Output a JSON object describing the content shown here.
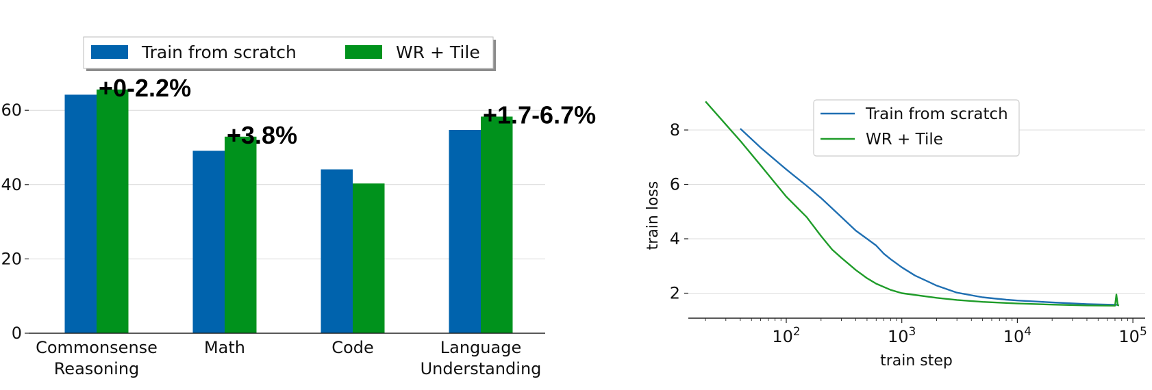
{
  "chart_data": [
    {
      "type": "bar",
      "categories": [
        [
          "Commonsense",
          "Reasoning"
        ],
        [
          "Math"
        ],
        [
          "Code"
        ],
        [
          "Language",
          "Understanding"
        ]
      ],
      "series": [
        {
          "name": "Train from scratch",
          "values": [
            64.2,
            49.1,
            44.1,
            54.7
          ],
          "color": "#0063ad"
        },
        {
          "name": "WR + Tile",
          "values": [
            65.6,
            52.9,
            40.3,
            58.3
          ],
          "color": "#00921c"
        }
      ],
      "annotations": [
        "+0-2.2%",
        "+3.8%",
        "",
        "+1.7-6.7%"
      ],
      "yticks": [
        0,
        20,
        40,
        60
      ],
      "ylim": [
        0,
        75
      ],
      "grid": true,
      "legend": "top"
    },
    {
      "type": "line",
      "xlabel": "train step",
      "ylabel": "train loss",
      "xscale": "log",
      "xticks": [
        "10^2",
        "10^3",
        "10^4",
        "10^5"
      ],
      "yticks": [
        2,
        4,
        6,
        8
      ],
      "xlim": [
        18,
        110000
      ],
      "ylim": [
        1.0,
        9.5
      ],
      "grid": true,
      "legend": "upper center",
      "series": [
        {
          "name": "Train from scratch",
          "color": "#1f6fb2",
          "x": [
            40,
            60,
            100,
            150,
            200,
            300,
            400,
            500,
            600,
            700,
            800,
            1000,
            1300,
            1700,
            2000,
            3000,
            5000,
            8000,
            10000,
            20000,
            40000,
            75000
          ],
          "y": [
            8.05,
            7.35,
            6.55,
            5.95,
            5.5,
            4.8,
            4.3,
            4.0,
            3.75,
            3.45,
            3.25,
            2.95,
            2.65,
            2.42,
            2.28,
            2.02,
            1.85,
            1.76,
            1.73,
            1.66,
            1.6,
            1.57
          ]
        },
        {
          "name": "WR + Tile",
          "color": "#1f9c29",
          "x": [
            20,
            40,
            60,
            80,
            100,
            150,
            200,
            250,
            300,
            400,
            500,
            600,
            800,
            1000,
            2000,
            3000,
            5000,
            10000,
            20000,
            40000,
            70000,
            72000,
            74000,
            76000
          ],
          "y": [
            9.05,
            7.6,
            6.7,
            6.05,
            5.55,
            4.8,
            4.1,
            3.6,
            3.3,
            2.85,
            2.55,
            2.35,
            2.12,
            2.0,
            1.83,
            1.75,
            1.68,
            1.62,
            1.58,
            1.55,
            1.54,
            1.95,
            1.56,
            1.55
          ]
        }
      ]
    }
  ]
}
